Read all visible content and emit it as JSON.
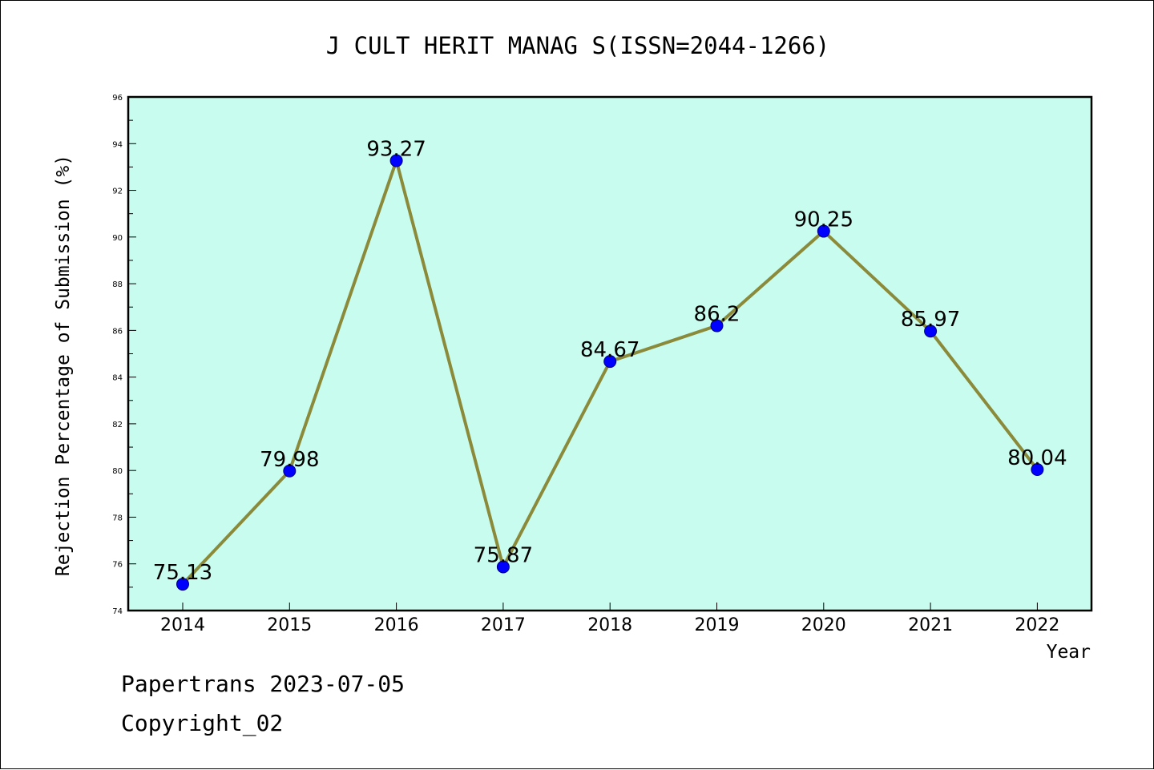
{
  "colors": {
    "plot_background": "#c8fcee",
    "line": "#8b8a3a",
    "marker_fill": "#0000ff",
    "marker_edge": "#000080"
  },
  "footer": {
    "line1": "Papertrans 2023-07-05",
    "line2": "Copyright_02"
  },
  "chart_data": {
    "type": "line",
    "title": "J CULT HERIT MANAG S(ISSN=2044-1266)",
    "xlabel": "Year",
    "ylabel": "Rejection Percentage of Submission (%)",
    "ylim": [
      74,
      96
    ],
    "yticks": [
      "74",
      "76",
      "78",
      "80",
      "82",
      "84",
      "86",
      "88",
      "90",
      "92",
      "94",
      "96"
    ],
    "categories": [
      "2014",
      "2015",
      "2016",
      "2017",
      "2018",
      "2019",
      "2020",
      "2021",
      "2022"
    ],
    "values": [
      75.13,
      79.98,
      93.27,
      75.87,
      84.67,
      86.2,
      90.25,
      85.97,
      80.04
    ],
    "data_labels": [
      "75.13",
      "79.98",
      "93.27",
      "75.87",
      "84.67",
      "86.2",
      "90.25",
      "85.97",
      "80.04"
    ],
    "grid": false,
    "legend": "none"
  }
}
